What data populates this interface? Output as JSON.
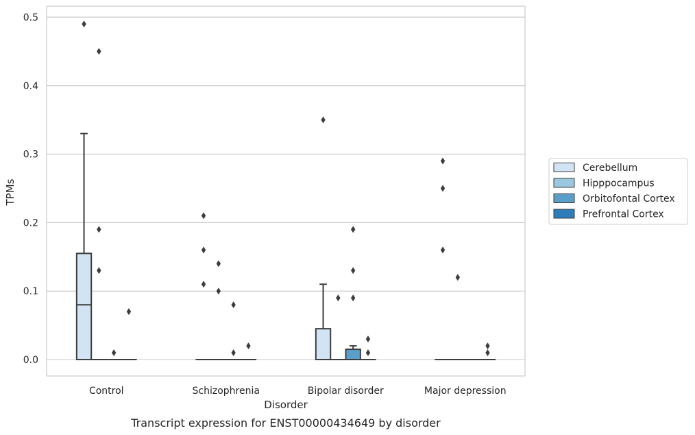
{
  "chart_data": {
    "type": "box",
    "title": "",
    "caption": "Transcript expression for ENST00000434649 by disorder",
    "xlabel": "Disorder",
    "ylabel": "TPMs",
    "ylim": [
      -0.024,
      0.516
    ],
    "yticks": [
      0.0,
      0.1,
      0.2,
      0.3,
      0.4,
      0.5
    ],
    "ytick_labels": [
      "0.0",
      "0.1",
      "0.2",
      "0.3",
      "0.4",
      "0.5"
    ],
    "grid": "horizontal",
    "legend_position": "right",
    "categories": [
      "Control",
      "Schizophrenia",
      "Bipolar disorder",
      "Major depression"
    ],
    "series": [
      {
        "name": "Cerebellum",
        "color": "#d2e3f3",
        "boxes": [
          {
            "q1": 0.0,
            "median": 0.08,
            "q3": 0.155,
            "whisker_low": 0.0,
            "whisker_high": 0.33,
            "outliers": [
              0.49
            ]
          },
          {
            "q1": 0.0,
            "median": 0.0,
            "q3": 0.0,
            "whisker_low": 0.0,
            "whisker_high": 0.0,
            "outliers": [
              0.21,
              0.16,
              0.11
            ]
          },
          {
            "q1": 0.0,
            "median": 0.0,
            "q3": 0.045,
            "whisker_low": 0.0,
            "whisker_high": 0.11,
            "outliers": [
              0.35
            ]
          },
          {
            "q1": 0.0,
            "median": 0.0,
            "q3": 0.0,
            "whisker_low": 0.0,
            "whisker_high": 0.0,
            "outliers": [
              0.29,
              0.25,
              0.16
            ]
          }
        ]
      },
      {
        "name": "Hipppocampus",
        "color": "#9ac8e0",
        "boxes": [
          {
            "q1": 0.0,
            "median": 0.0,
            "q3": 0.0,
            "whisker_low": 0.0,
            "whisker_high": 0.0,
            "outliers": [
              0.45,
              0.19,
              0.13
            ]
          },
          {
            "q1": 0.0,
            "median": 0.0,
            "q3": 0.0,
            "whisker_low": 0.0,
            "whisker_high": 0.0,
            "outliers": [
              0.14,
              0.1
            ]
          },
          {
            "q1": 0.0,
            "median": 0.0,
            "q3": 0.0,
            "whisker_low": 0.0,
            "whisker_high": 0.0,
            "outliers": [
              0.09
            ]
          },
          {
            "q1": 0.0,
            "median": 0.0,
            "q3": 0.0,
            "whisker_low": 0.0,
            "whisker_high": 0.0,
            "outliers": [
              0.12
            ]
          }
        ]
      },
      {
        "name": "Orbitofontal Cortex",
        "color": "#5b9ec9",
        "boxes": [
          {
            "q1": 0.0,
            "median": 0.0,
            "q3": 0.0,
            "whisker_low": 0.0,
            "whisker_high": 0.0,
            "outliers": [
              0.01
            ]
          },
          {
            "q1": 0.0,
            "median": 0.0,
            "q3": 0.0,
            "whisker_low": 0.0,
            "whisker_high": 0.0,
            "outliers": [
              0.08,
              0.01
            ]
          },
          {
            "q1": 0.0,
            "median": 0.0,
            "q3": 0.015,
            "whisker_low": 0.0,
            "whisker_high": 0.02,
            "outliers": [
              0.19,
              0.13,
              0.09
            ]
          },
          {
            "q1": 0.0,
            "median": 0.0,
            "q3": 0.0,
            "whisker_low": 0.0,
            "whisker_high": 0.0,
            "outliers": []
          }
        ]
      },
      {
        "name": "Prefrontal Cortex",
        "color": "#2d7dbb",
        "boxes": [
          {
            "q1": 0.0,
            "median": 0.0,
            "q3": 0.0,
            "whisker_low": 0.0,
            "whisker_high": 0.0,
            "outliers": [
              0.07
            ]
          },
          {
            "q1": 0.0,
            "median": 0.0,
            "q3": 0.0,
            "whisker_low": 0.0,
            "whisker_high": 0.0,
            "outliers": [
              0.02
            ]
          },
          {
            "q1": 0.0,
            "median": 0.0,
            "q3": 0.0,
            "whisker_low": 0.0,
            "whisker_high": 0.0,
            "outliers": [
              0.03,
              0.01
            ]
          },
          {
            "q1": 0.0,
            "median": 0.0,
            "q3": 0.0,
            "whisker_low": 0.0,
            "whisker_high": 0.0,
            "outliers": [
              0.02,
              0.01
            ]
          }
        ]
      }
    ]
  }
}
